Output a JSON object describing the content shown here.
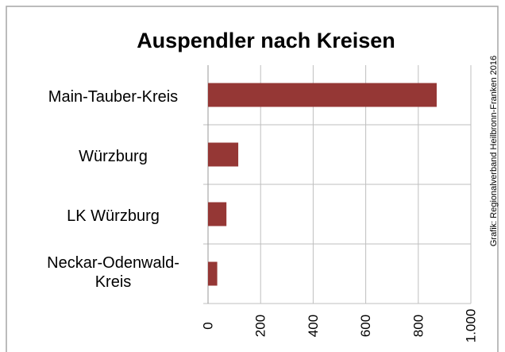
{
  "chart_data": {
    "type": "bar",
    "orientation": "horizontal",
    "title": "Auspendler nach Kreisen",
    "annotation": "Grafik: Regionalverband Heilbronn-Franken 2016",
    "categories": [
      "Main-Tauber-Kreis",
      "Würzburg",
      "LK Würzburg",
      "Neckar-Odenwald-Kreis"
    ],
    "values": [
      870,
      115,
      70,
      35
    ],
    "color": "#953735",
    "xlim": [
      0,
      1000
    ],
    "xticks": [
      0,
      200,
      400,
      600,
      800,
      {
        "value": 1000,
        "label": "1.000"
      }
    ],
    "grid": true
  }
}
